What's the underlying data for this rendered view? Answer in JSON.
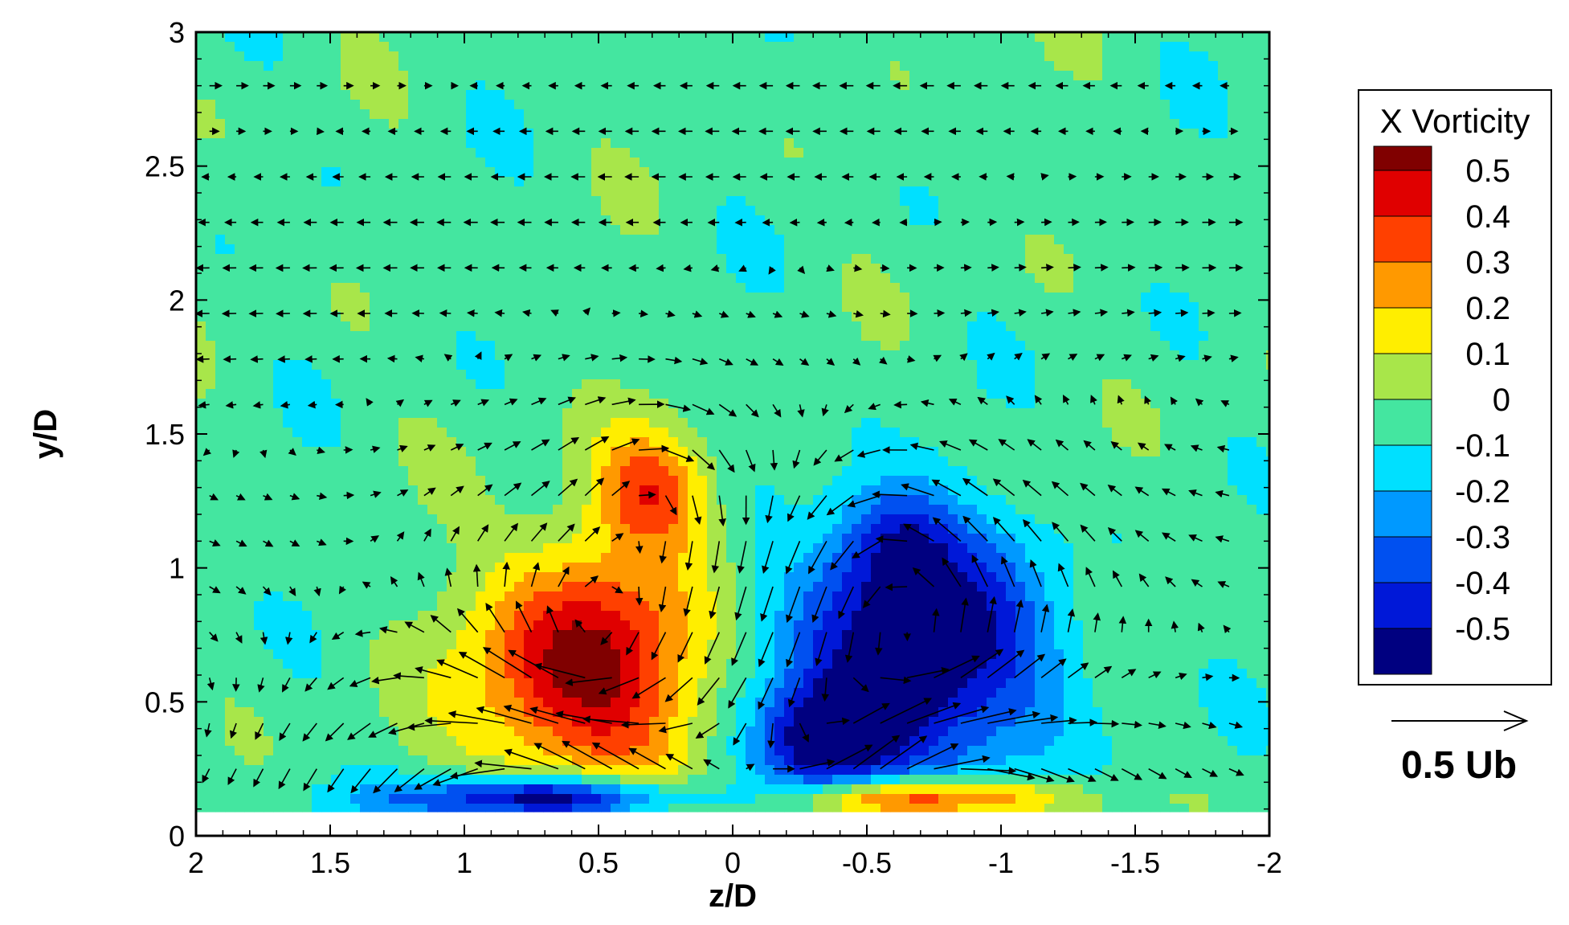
{
  "chart_data": {
    "type": "heatmap",
    "subtype": "contour-with-vector-field",
    "title": "",
    "xlabel": "z/D",
    "ylabel": "y/D",
    "xlim": [
      2,
      -2
    ],
    "ylim": [
      0,
      3
    ],
    "x_axis_reversed": true,
    "x_ticks": [
      2,
      1.5,
      1,
      0.5,
      0,
      -0.5,
      -1,
      -1.5,
      -2
    ],
    "x_tick_labels": [
      "2",
      "1.5",
      "1",
      "0.5",
      "0",
      "-0.5",
      "-1",
      "-1.5",
      "-2"
    ],
    "y_ticks": [
      0,
      0.5,
      1,
      1.5,
      2,
      2.5,
      3
    ],
    "y_tick_labels": [
      "0",
      "0.5",
      "1",
      "1.5",
      "2",
      "2.5",
      "3"
    ],
    "grid": false,
    "legend": {
      "title": "X Vorticity",
      "placement": "right",
      "levels": [
        0.5,
        0.4,
        0.3,
        0.2,
        0.1,
        0,
        -0.1,
        -0.2,
        -0.3,
        -0.4,
        -0.5
      ],
      "level_labels": [
        "0.5",
        "0.4",
        "0.3",
        "0.2",
        "0.1",
        "0",
        "-0.1",
        "-0.2",
        "-0.3",
        "-0.4",
        "-0.5"
      ],
      "colors": [
        "#800000",
        "#e00000",
        "#ff4000",
        "#ff9900",
        "#ffee00",
        "#a8e64a",
        "#44e6a0",
        "#00e0ff",
        "#0099ff",
        "#0050f0",
        "#0018d8",
        "#000080"
      ]
    },
    "vector_reference": {
      "label": "0.5 Ub",
      "magnitude": 0.5
    },
    "data_floor_y": 0.09,
    "vortex_features": [
      {
        "z": 0.55,
        "y": 0.62,
        "peak": 0.6,
        "rz": 0.42,
        "ry": 0.45
      },
      {
        "z": 0.3,
        "y": 1.3,
        "peak": 0.38,
        "rz": 0.22,
        "ry": 0.22
      },
      {
        "z": -0.7,
        "y": 0.68,
        "peak": -0.6,
        "rz": 0.45,
        "ry": 0.45
      },
      {
        "z": -0.35,
        "y": 0.35,
        "peak": -0.55,
        "rz": 0.25,
        "ry": 0.2
      },
      {
        "z": -0.6,
        "y": 1.1,
        "peak": -0.3,
        "rz": 0.22,
        "ry": 0.22
      },
      {
        "z": 0.7,
        "y": 0.14,
        "peak": -0.6,
        "rz": 0.55,
        "ry": 0.08
      },
      {
        "z": -0.7,
        "y": 0.14,
        "peak": 0.55,
        "rz": 0.5,
        "ry": 0.08
      }
    ]
  }
}
